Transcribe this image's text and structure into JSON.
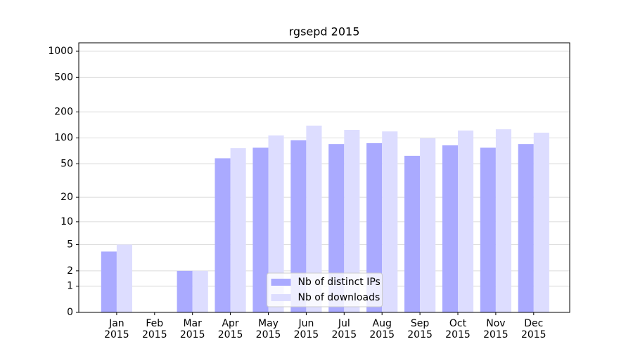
{
  "chart_data": {
    "type": "bar",
    "title": "rgsepd 2015",
    "categories": [
      "Jan\n2015",
      "Feb\n2015",
      "Mar\n2015",
      "Apr\n2015",
      "May\n2015",
      "Jun\n2015",
      "Jul\n2015",
      "Aug\n2015",
      "Sep\n2015",
      "Oct\n2015",
      "Nov\n2015",
      "Dec\n2015"
    ],
    "series": [
      {
        "name": "Nb of distinct IPs",
        "color": "#aaaaff",
        "values": [
          4,
          0,
          2,
          58,
          77,
          94,
          85,
          87,
          62,
          82,
          77,
          85
        ]
      },
      {
        "name": "Nb of downloads",
        "color": "#ddddff",
        "values": [
          5,
          0,
          2,
          76,
          107,
          139,
          124,
          119,
          99,
          122,
          126,
          115
        ]
      }
    ],
    "yscale": "log1p",
    "ylim": [
      0,
      1250
    ],
    "yticks": [
      0,
      1,
      2,
      5,
      10,
      20,
      50,
      100,
      200,
      500,
      1000
    ],
    "grid": true,
    "legend": "lower center"
  }
}
